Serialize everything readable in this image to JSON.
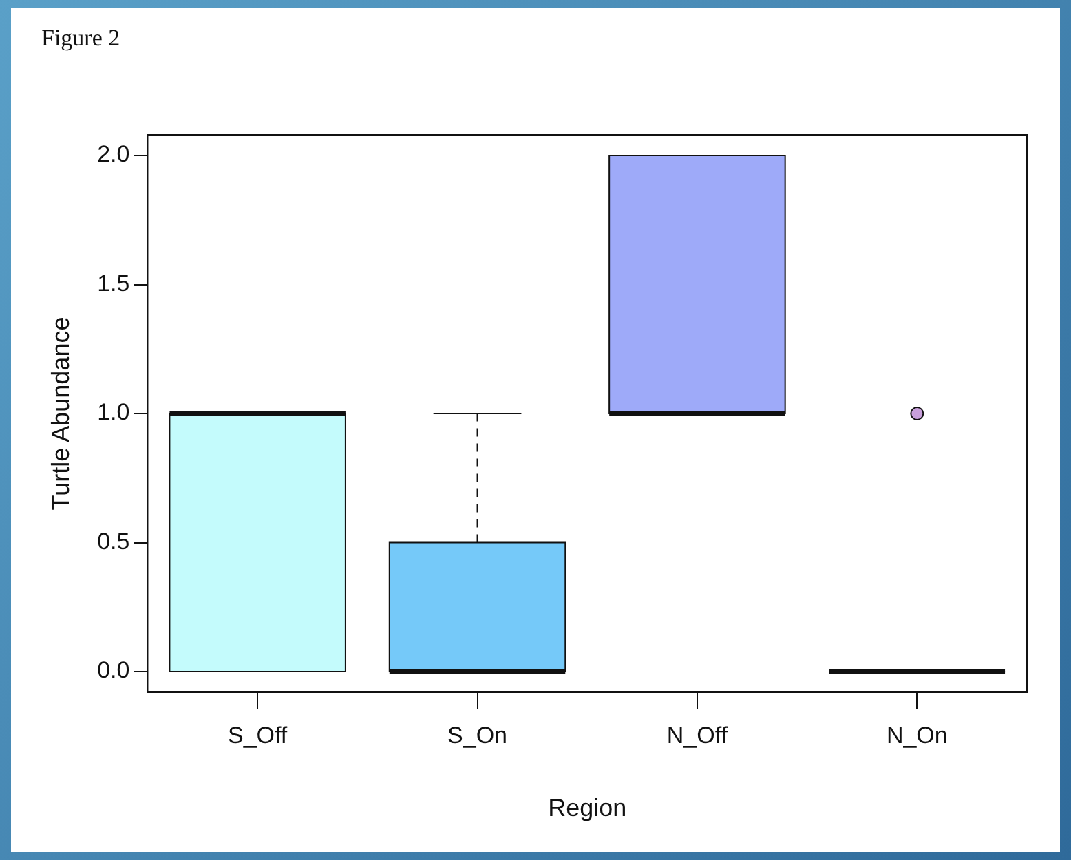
{
  "chart_data": {
    "type": "box",
    "title": "Figure 2",
    "xlabel": "Region",
    "ylabel": "Turtle Abundance",
    "categories": [
      "S_Off",
      "S_On",
      "N_Off",
      "N_On"
    ],
    "colors": [
      "#c4fbfc",
      "#75c9f9",
      "#9eaaf9",
      "#111111"
    ],
    "boxes": [
      {
        "low": 0,
        "q1": 0,
        "median": 1,
        "q3": 1,
        "high": 1
      },
      {
        "low": 0,
        "q1": 0,
        "median": 0,
        "q3": 0.5,
        "high": 1
      },
      {
        "low": 1,
        "q1": 1,
        "median": 1,
        "q3": 2,
        "high": 2
      },
      {
        "low": 0,
        "q1": 0,
        "median": 0,
        "q3": 0,
        "high": 0,
        "outliers": [
          1
        ]
      }
    ],
    "ylim": [
      -0.08,
      2.08
    ],
    "yticks": [
      {
        "value": 0,
        "label": "0.0"
      },
      {
        "value": 0.5,
        "label": "0.5"
      },
      {
        "value": 1,
        "label": "1.0"
      },
      {
        "value": 1.5,
        "label": "1.5"
      },
      {
        "value": 2,
        "label": "2.0"
      }
    ],
    "grid": false,
    "legend": false,
    "line_style": "dashed"
  }
}
